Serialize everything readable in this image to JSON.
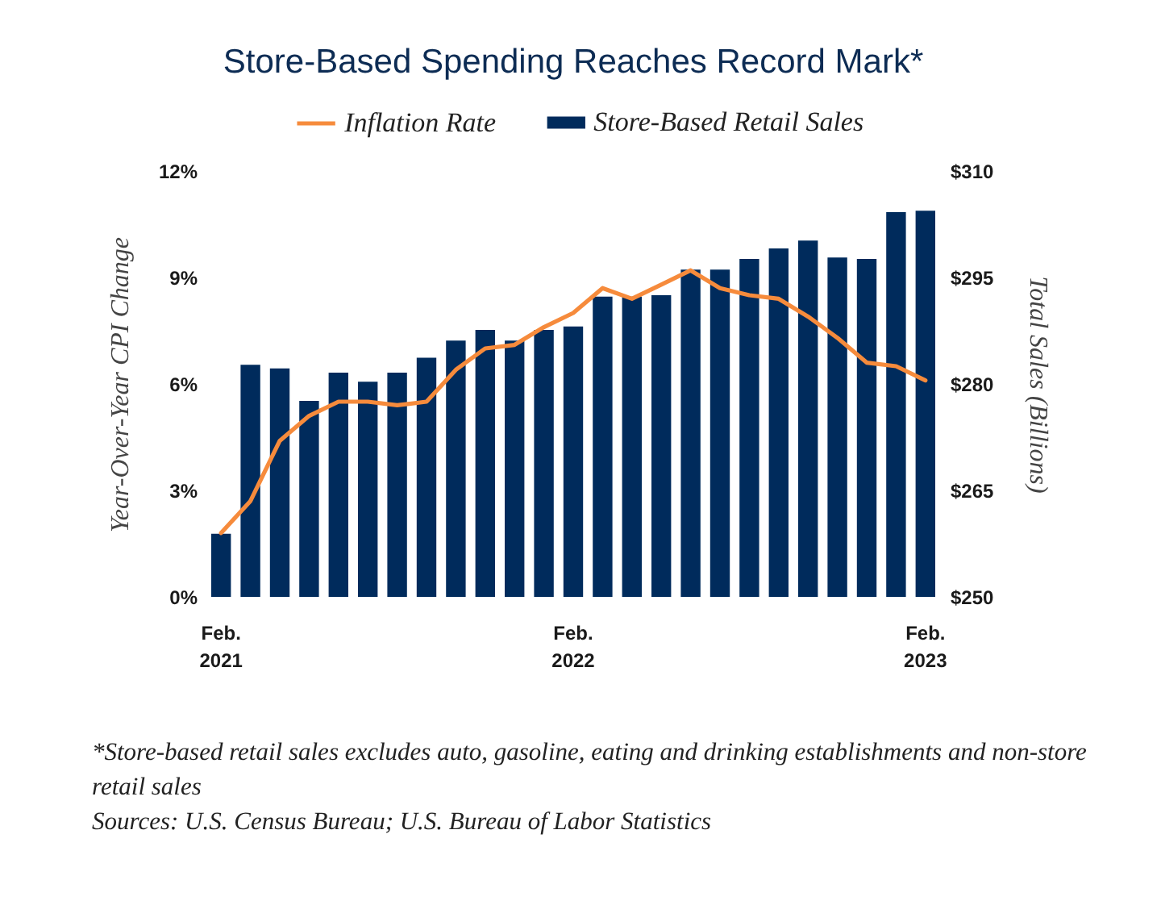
{
  "chart_data": {
    "type": "bar",
    "title": "Store-Based Spending Reaches Record Mark*",
    "ylabel": "Year-Over-Year CPI Change",
    "y2label": "Total Sales (Billions)",
    "categories": [
      "Feb. 2021",
      null,
      null,
      null,
      null,
      null,
      null,
      null,
      null,
      null,
      null,
      null,
      "Feb. 2022",
      null,
      null,
      null,
      null,
      null,
      null,
      null,
      null,
      null,
      null,
      null,
      "Feb. 2023"
    ],
    "series": [
      {
        "name": "Inflation Rate",
        "type": "line",
        "color": "#f68b3c",
        "values": [
          1.8,
          2.7,
          4.4,
          5.1,
          5.5,
          5.5,
          5.4,
          5.5,
          6.4,
          7.0,
          7.1,
          7.6,
          8.0,
          8.7,
          8.4,
          8.8,
          9.2,
          8.7,
          8.5,
          8.4,
          7.9,
          7.3,
          6.6,
          6.5,
          6.1
        ]
      },
      {
        "name": "Store-Based Retail Sales",
        "axis": "y2",
        "color": "#002b5c",
        "values": [
          258.9,
          282.7,
          282.2,
          277.6,
          281.6,
          280.3,
          281.6,
          283.7,
          286.1,
          287.6,
          286.1,
          287.6,
          288.1,
          292.3,
          292.3,
          292.5,
          296.1,
          296.1,
          297.6,
          299.1,
          300.2,
          297.8,
          297.6,
          304.2,
          304.4
        ]
      }
    ],
    "ylim": [
      0,
      12
    ],
    "yticks": [
      {
        "value": 0,
        "label": "0%"
      },
      {
        "value": 3,
        "label": "3%"
      },
      {
        "value": 6,
        "label": "6%"
      },
      {
        "value": 9,
        "label": "9%"
      },
      {
        "value": 12,
        "label": "12%"
      }
    ],
    "y2lim": [
      250,
      310
    ],
    "y2ticks": [
      {
        "value": 250,
        "label": "$250"
      },
      {
        "value": 265,
        "label": "$265"
      },
      {
        "value": 280,
        "label": "$280"
      },
      {
        "value": 295,
        "label": "$295"
      },
      {
        "value": 310,
        "label": "$310"
      }
    ],
    "legend": "top",
    "annotations": [
      "*Store-based retail sales excludes auto, gasoline, eating and drinking establishments and non-store retail sales",
      "Sources: U.S. Census Bureau; U.S. Bureau of Labor Statistics"
    ]
  }
}
